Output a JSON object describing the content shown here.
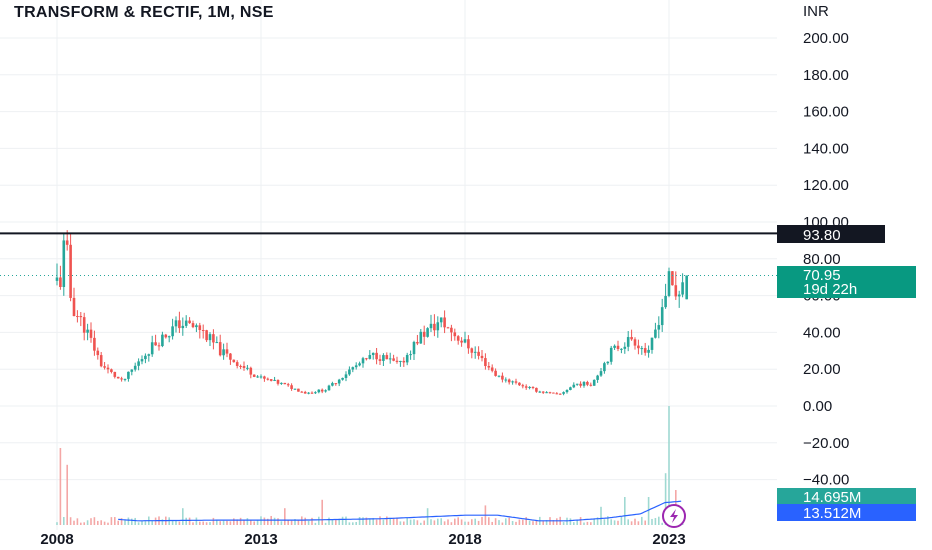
{
  "title": "TRANSFORM & RECTIF, 1M, NSE",
  "currency": "INR",
  "badges": {
    "resistance": "93.80",
    "last_price": "70.95",
    "countdown": "19d 22h",
    "volume": "14.695M",
    "volume_ma": "13.512M"
  },
  "colors": {
    "up": "#26a69a",
    "down": "#ef5350",
    "vol_up": "#9fd9d2",
    "vol_down": "#f4a7a6",
    "ma_line": "#2962ff",
    "resistance": "#131722",
    "grid": "#eef0f3",
    "last_line": "#26a69a"
  },
  "chart_data": {
    "type": "candlestick",
    "title": "TRANSFORM & RECTIF, 1M, NSE",
    "y_axis_label": "INR",
    "yticks": [
      "200.00",
      "180.00",
      "160.00",
      "140.00",
      "120.00",
      "100.00",
      "80.00",
      "60.00",
      "40.00",
      "20.00",
      "0.00",
      "−20.00",
      "−40.00"
    ],
    "ytick_values": [
      200,
      180,
      160,
      140,
      120,
      100,
      80,
      60,
      40,
      20,
      0,
      -20,
      -40
    ],
    "ylim": [
      -60,
      215
    ],
    "xticks": [
      "2008",
      "2013",
      "2018",
      "2023"
    ],
    "xtick_years": [
      2008,
      2013,
      2018,
      2023
    ],
    "x_range_years": [
      2007.9,
      2025.2
    ],
    "resistance_level": 93.8,
    "last_price": 70.95,
    "price_waypoints": [
      [
        2008.1,
        68
      ],
      [
        2008.2,
        94
      ],
      [
        2008.35,
        55
      ],
      [
        2008.7,
        42
      ],
      [
        2009.1,
        22
      ],
      [
        2009.6,
        13
      ],
      [
        2010.3,
        32
      ],
      [
        2011.0,
        45
      ],
      [
        2011.5,
        42
      ],
      [
        2012.0,
        30
      ],
      [
        2012.5,
        22
      ],
      [
        2013.0,
        15
      ],
      [
        2013.5,
        12
      ],
      [
        2014.1,
        7
      ],
      [
        2014.6,
        9
      ],
      [
        2015.2,
        20
      ],
      [
        2015.8,
        28
      ],
      [
        2016.4,
        22
      ],
      [
        2016.9,
        38
      ],
      [
        2017.4,
        46
      ],
      [
        2017.9,
        36
      ],
      [
        2018.3,
        28
      ],
      [
        2018.8,
        16
      ],
      [
        2019.3,
        12
      ],
      [
        2019.8,
        8
      ],
      [
        2020.3,
        6
      ],
      [
        2020.7,
        12
      ],
      [
        2021.1,
        12
      ],
      [
        2021.6,
        30
      ],
      [
        2022.1,
        37
      ],
      [
        2022.5,
        28
      ],
      [
        2022.8,
        52
      ],
      [
        2023.0,
        68
      ],
      [
        2023.2,
        58
      ],
      [
        2023.35,
        70.95
      ]
    ],
    "volume_spikes": [
      [
        2008.1,
        0.55
      ],
      [
        2008.25,
        0.43
      ],
      [
        2011.1,
        0.12
      ],
      [
        2013.6,
        0.12
      ],
      [
        2014.5,
        0.18
      ],
      [
        2017.1,
        0.12
      ],
      [
        2018.5,
        0.14
      ],
      [
        2021.3,
        0.13
      ],
      [
        2021.9,
        0.2
      ],
      [
        2022.5,
        0.2
      ],
      [
        2022.9,
        0.37
      ],
      [
        2023.0,
        0.85
      ],
      [
        2023.2,
        0.25
      ]
    ],
    "volume_ma_waypoints": [
      [
        2009.5,
        0.04
      ],
      [
        2010.0,
        0.03
      ],
      [
        2012.0,
        0.035
      ],
      [
        2014.0,
        0.035
      ],
      [
        2016.0,
        0.045
      ],
      [
        2018.0,
        0.07
      ],
      [
        2018.8,
        0.07
      ],
      [
        2019.8,
        0.03
      ],
      [
        2020.5,
        0.03
      ],
      [
        2021.5,
        0.05
      ],
      [
        2022.3,
        0.08
      ],
      [
        2022.9,
        0.16
      ],
      [
        2023.3,
        0.17
      ]
    ]
  }
}
